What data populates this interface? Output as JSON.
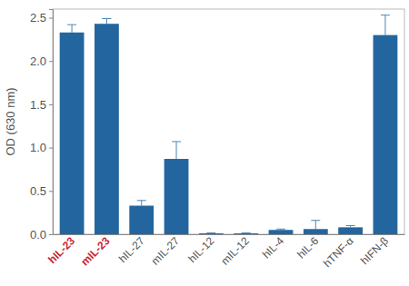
{
  "chart_data": {
    "type": "bar",
    "y_label": "OD (630 nm)",
    "categories": [
      "hIL-23",
      "mIL-23",
      "hIL-27",
      "mIL-27",
      "hIL-12",
      "mIL-12",
      "hIL-4",
      "hIL-6",
      "hTNF-α",
      "hIFN-β"
    ],
    "values": [
      2.33,
      2.43,
      0.33,
      0.87,
      0.01,
      0.01,
      0.05,
      0.06,
      0.08,
      2.3
    ],
    "errors": [
      0.09,
      0.06,
      0.06,
      0.2,
      0.005,
      0.005,
      0.01,
      0.1,
      0.02,
      0.23
    ],
    "color": "#23669f",
    "ylim": [
      0,
      2.6
    ],
    "yticks": [
      {
        "value": 0,
        "label": "0.0"
      },
      0.5,
      {
        "value": 1,
        "label": "1.0"
      },
      1.5,
      {
        "value": 2,
        "label": "2.0"
      },
      2.5
    ],
    "grid": false
  }
}
